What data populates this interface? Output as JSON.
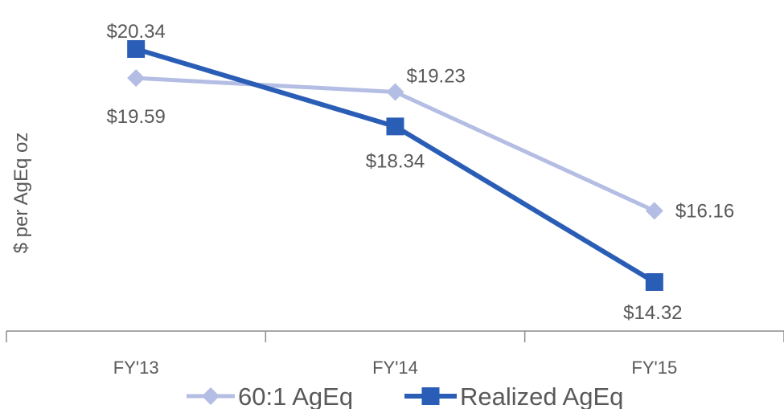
{
  "chart_data": {
    "type": "line",
    "categories": [
      "FY'13",
      "FY'14",
      "FY'15"
    ],
    "series": [
      {
        "name": "60:1 AgEq",
        "values": [
          19.59,
          19.23,
          16.16
        ],
        "color": "#b4bde3",
        "marker": "diamond",
        "labels": [
          "$19.59",
          "$19.23",
          "$16.16"
        ]
      },
      {
        "name": "Realized AgEq",
        "values": [
          20.34,
          18.34,
          14.32
        ],
        "color": "#2a5db5",
        "marker": "square",
        "labels": [
          "$20.34",
          "$18.34",
          "$14.32"
        ]
      }
    ],
    "ylabel": "$ per AgEq oz",
    "xlabel": "",
    "grid": false,
    "legend": "bottom"
  }
}
